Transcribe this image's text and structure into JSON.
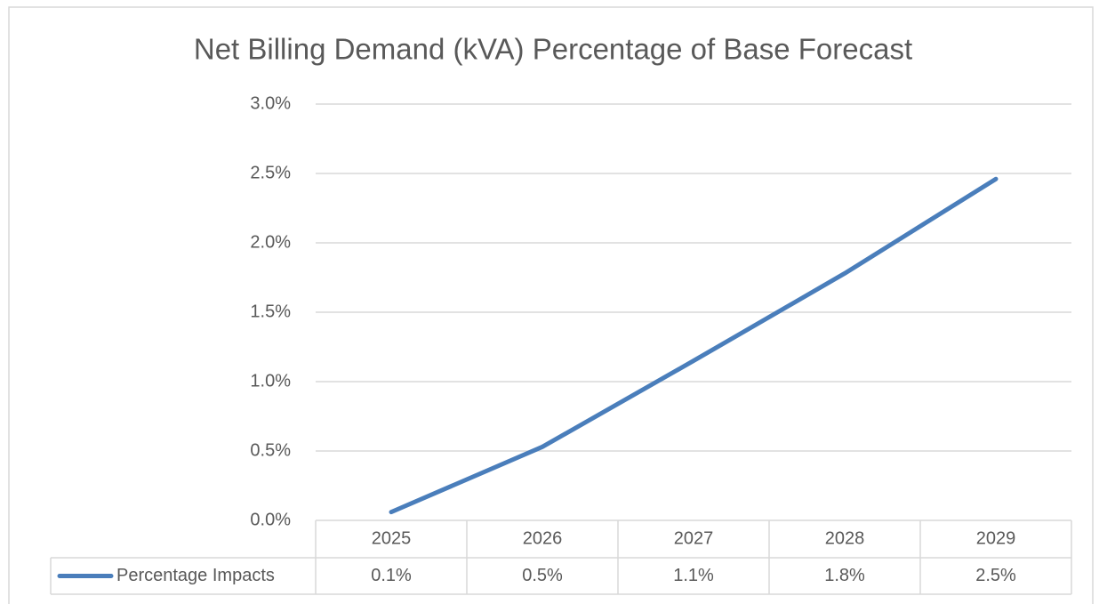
{
  "chart_data": {
    "type": "line",
    "title": "Net Billing Demand (kVA) Percentage of Base Forecast",
    "categories": [
      "2025",
      "2026",
      "2027",
      "2028",
      "2029"
    ],
    "series": [
      {
        "name": "Percentage Impacts",
        "color": "#4a7ebb",
        "values": [
          0.06,
          0.53,
          1.15,
          1.78,
          2.46
        ],
        "value_labels": [
          "0.1%",
          "0.5%",
          "1.1%",
          "1.8%",
          "2.5%"
        ]
      }
    ],
    "ylim": [
      0,
      3
    ],
    "yticks": [
      {
        "value": 0,
        "label": "0.0%"
      },
      {
        "value": 0.5,
        "label": "0.5%"
      },
      {
        "value": 1,
        "label": "1.0%"
      },
      {
        "value": 1.5,
        "label": "1.5%"
      },
      {
        "value": 2,
        "label": "2.0%"
      },
      {
        "value": 2.5,
        "label": "2.5%"
      },
      {
        "value": 3,
        "label": "3.0%"
      }
    ],
    "grid": true
  }
}
